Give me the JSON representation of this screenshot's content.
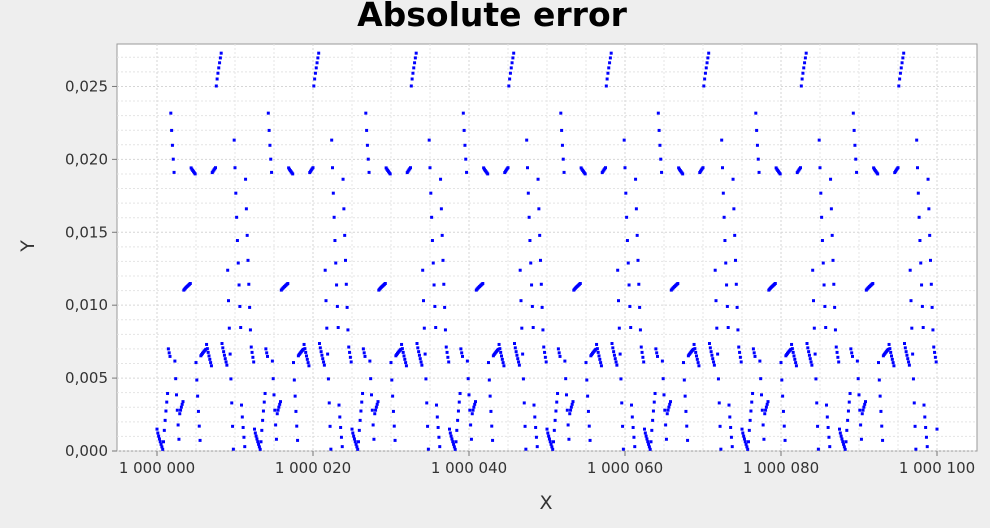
{
  "chart_data": {
    "type": "scatter",
    "title": "Absolute error",
    "xlabel": "X",
    "ylabel": "Y",
    "xlim": [
      1000000,
      1000100
    ],
    "ylim": [
      0,
      0.0275
    ],
    "x_ticks": [
      1000000,
      1000020,
      1000040,
      1000060,
      1000080,
      1000100
    ],
    "x_tick_labels": [
      "1 000 000",
      "1 000 020",
      "1 000 040",
      "1 000 060",
      "1 000 080",
      "1 000 100"
    ],
    "y_ticks": [
      0,
      0.005,
      0.01,
      0.015,
      0.02,
      0.025
    ],
    "y_tick_labels": [
      "0,000",
      "0,005",
      "0,010",
      "0,015",
      "0,020",
      "0,025"
    ],
    "grid": true,
    "legend": "none",
    "colors": {
      "points": "#0000ff",
      "plot_background": "#ffffff",
      "page_background": "#eeeeee"
    },
    "series": [
      {
        "pattern": "periodic",
        "period": 12.5,
        "x_start": 1000000,
        "x_end": 1000100,
        "samples_per_period": 120,
        "segments": [
          {
            "x_from": 0.0,
            "x_to": 0.8,
            "y_from": 0.0015,
            "y_to": 0.0
          },
          {
            "x_from": 0.8,
            "x_to": 1.4,
            "y_from": 0.0003,
            "y_to": 0.0042
          },
          {
            "x_from": 1.4,
            "x_to": 1.75,
            "y_from": 0.0072,
            "y_to": 0.0063
          },
          {
            "x_from": 1.75,
            "x_to": 2.2,
            "y_from": 0.0235,
            "y_to": 0.019
          },
          {
            "x_from": 2.2,
            "x_to": 2.9,
            "y_from": 0.0075,
            "y_to": 0.0
          },
          {
            "x_from": 2.9,
            "x_to": 3.4,
            "y_from": 0.0025,
            "y_to": 0.0035
          },
          {
            "x_from": 3.4,
            "x_to": 4.3,
            "y_from": 0.011,
            "y_to": 0.0115
          },
          {
            "x_from": 4.3,
            "x_to": 4.9,
            "y_from": 0.0195,
            "y_to": 0.019
          },
          {
            "x_from": 4.9,
            "x_to": 5.6,
            "y_from": 0.0075,
            "y_to": 0.0
          },
          {
            "x_from": 5.6,
            "x_to": 6.3,
            "y_from": 0.0065,
            "y_to": 0.007
          },
          {
            "x_from": 6.3,
            "x_to": 7.0,
            "y_from": 0.0075,
            "y_to": 0.0058
          },
          {
            "x_from": 7.0,
            "x_to": 7.6,
            "y_from": 0.019,
            "y_to": 0.0195
          },
          {
            "x_from": 7.6,
            "x_to": 8.3,
            "y_from": 0.025,
            "y_to": 0.0275
          },
          {
            "x_from": 8.3,
            "x_to": 9.0,
            "y_from": 0.0075,
            "y_to": 0.0058
          },
          {
            "x_from": 9.0,
            "x_to": 9.8,
            "y_from": 0.014,
            "y_to": 0.0
          },
          {
            "x_from": 9.8,
            "x_to": 10.8,
            "y_from": 0.0235,
            "y_to": 0.0075
          },
          {
            "x_from": 10.8,
            "x_to": 11.3,
            "y_from": 0.0035,
            "y_to": 0.0
          },
          {
            "x_from": 11.3,
            "x_to": 12.0,
            "y_from": 0.02,
            "y_to": 0.008
          },
          {
            "x_from": 12.0,
            "x_to": 12.5,
            "y_from": 0.0075,
            "y_to": 0.0058
          }
        ]
      }
    ]
  }
}
